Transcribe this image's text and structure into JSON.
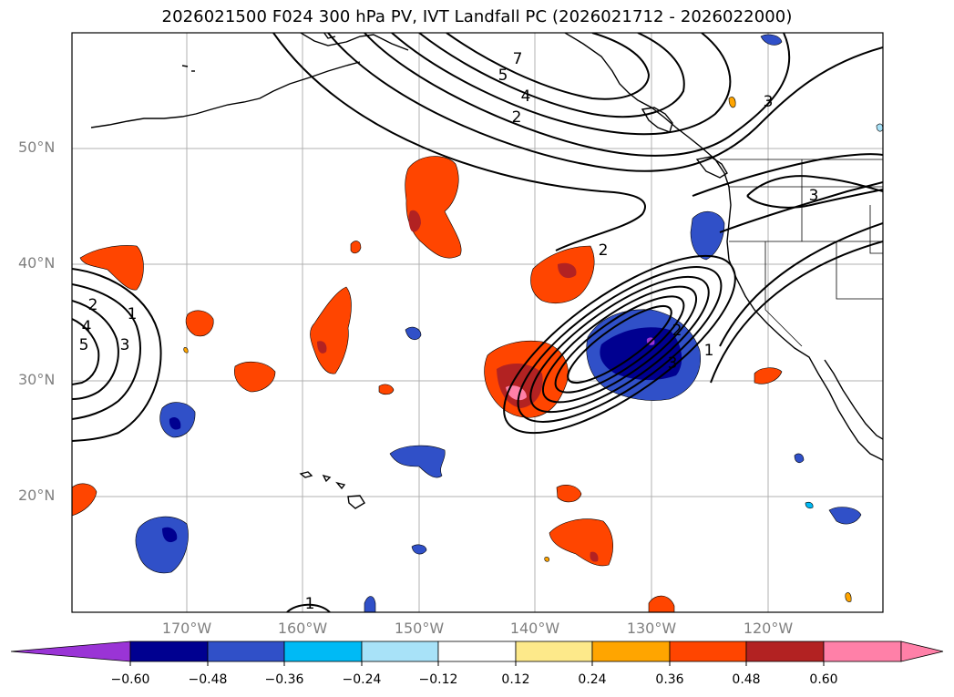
{
  "title": "2026021500 F024 300 hPa PV, IVT Landfall PC (2026021712 - 2026022000)",
  "lat_labels": [
    "50°N",
    "40°N",
    "30°N",
    "20°N"
  ],
  "lon_labels": [
    "170°W",
    "160°W",
    "150°W",
    "140°W",
    "130°W",
    "120°W"
  ],
  "colorbar": {
    "ticks": [
      "−0.60",
      "−0.48",
      "−0.36",
      "−0.24",
      "−0.12",
      "0.12",
      "0.24",
      "0.36",
      "0.48",
      "0.60"
    ],
    "colors": [
      "#9a34d6",
      "#000090",
      "#3050c8",
      "#00baf5",
      "#a8e2f8",
      "#ffffff",
      "#fde98a",
      "#ffa500",
      "#ff4500",
      "#b22222",
      "#ff80a8",
      "#ff80a8"
    ]
  },
  "contour_labels": [
    "7",
    "5",
    "4",
    "2",
    "3",
    "3",
    "2",
    "2",
    "3",
    "1",
    "2",
    "1",
    "4",
    "3",
    "5",
    "1"
  ]
}
